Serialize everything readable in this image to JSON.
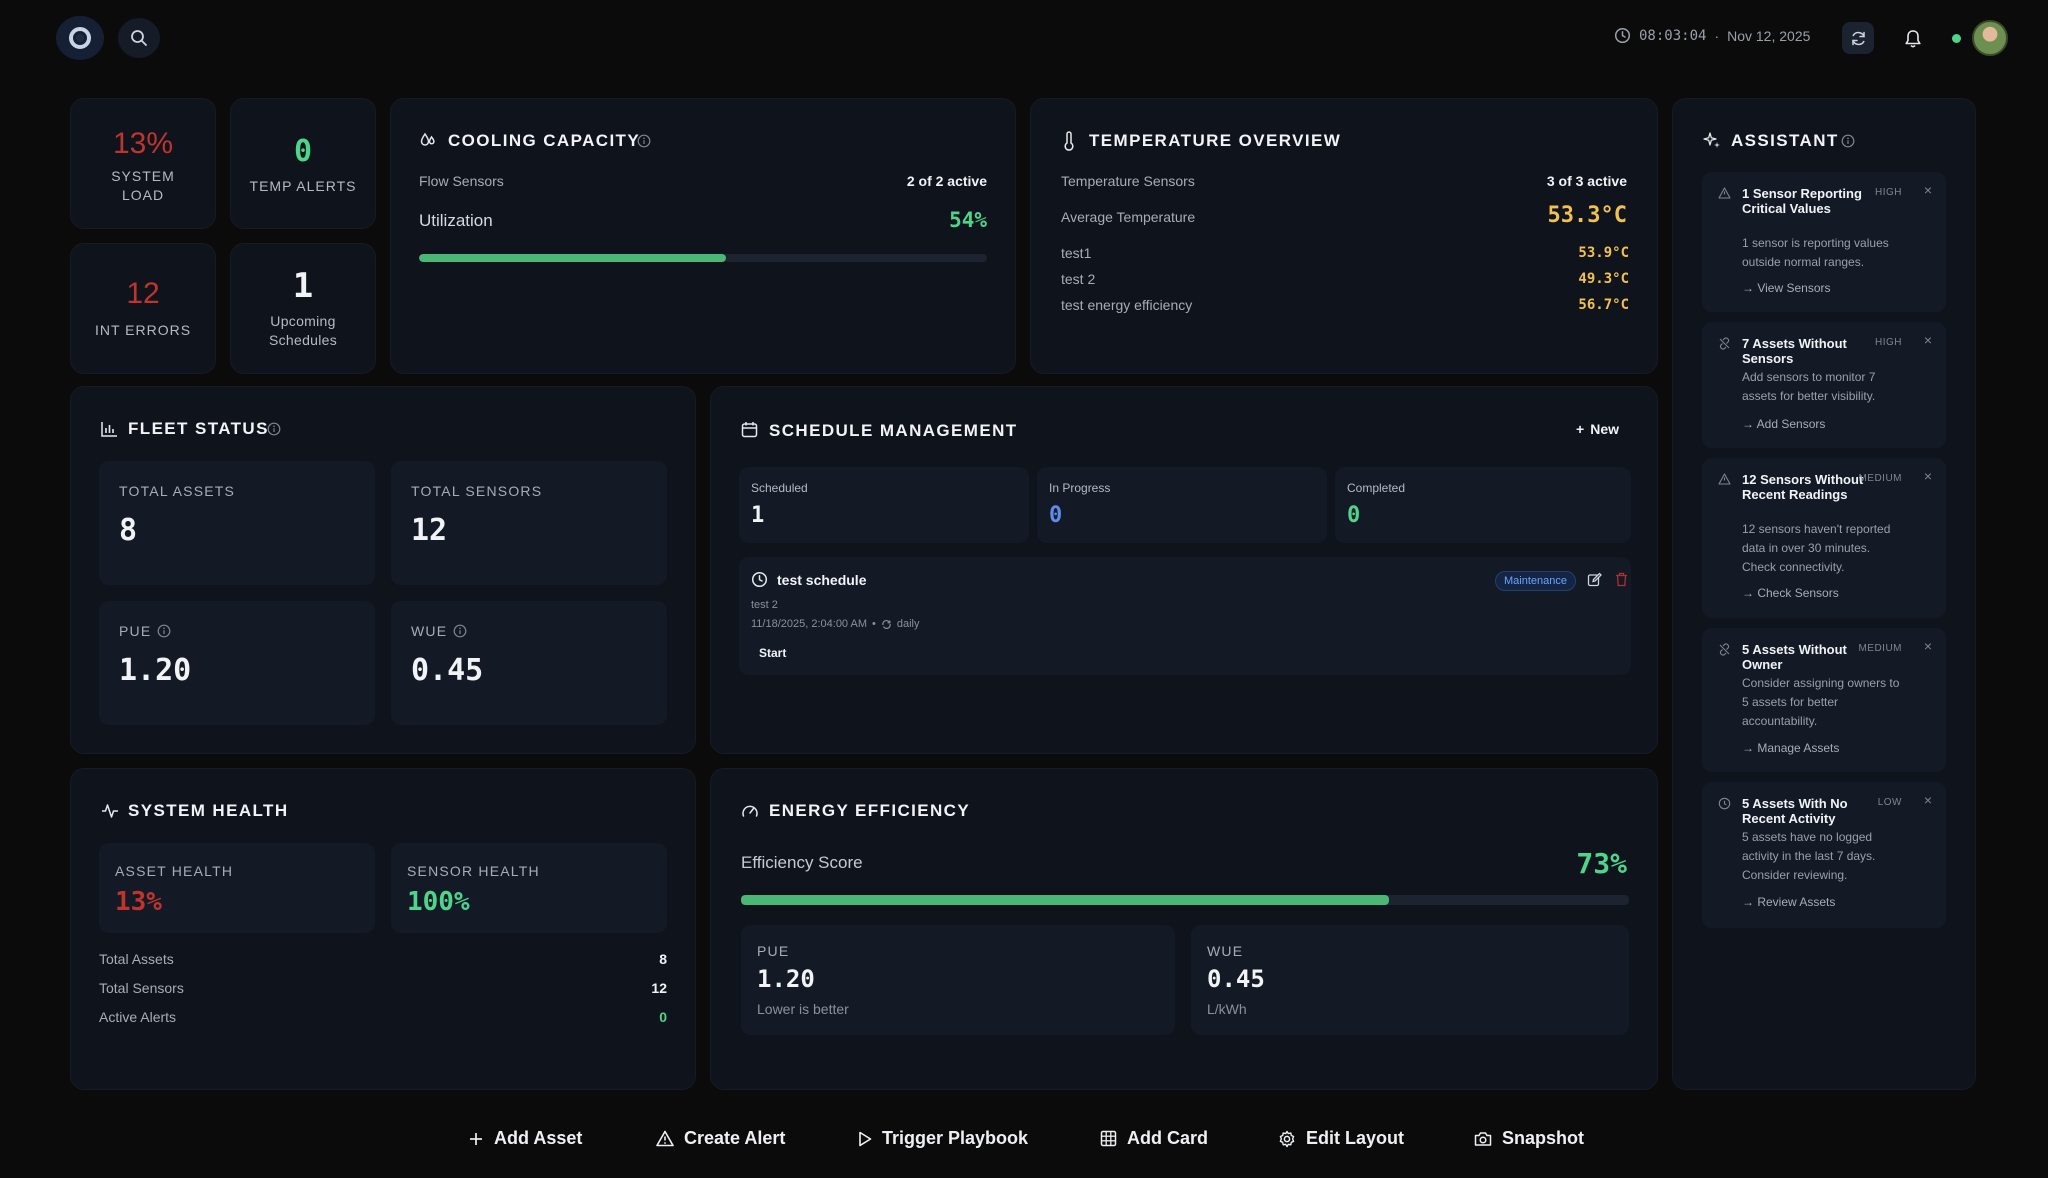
{
  "header": {
    "time": "08:03:04",
    "separator": "·",
    "date": "Nov 12, 2025"
  },
  "kpis": {
    "system_load": {
      "value": "13%",
      "label": "SYSTEM LOAD"
    },
    "temp_alerts": {
      "value": "0",
      "label": "TEMP ALERTS"
    },
    "int_errors": {
      "value": "12",
      "label": "INT ERRORS"
    },
    "upcoming": {
      "value": "1",
      "label": "Upcoming Schedules"
    }
  },
  "cooling": {
    "title": "COOLING CAPACITY",
    "flow_label": "Flow Sensors",
    "flow_value": "2 of 2 active",
    "util_label": "Utilization",
    "util_value": "54%",
    "util_fraction": 0.54
  },
  "temperature": {
    "title": "TEMPERATURE OVERVIEW",
    "sensors_label": "Temperature Sensors",
    "sensors_value": "3 of 3 active",
    "avg_label": "Average Temperature",
    "avg_value": "53.3°C",
    "items": [
      {
        "name": "test1",
        "value": "53.9°C"
      },
      {
        "name": "test 2",
        "value": "49.3°C"
      },
      {
        "name": "test energy efficiency",
        "value": "56.7°C"
      }
    ]
  },
  "fleet": {
    "title": "FLEET STATUS",
    "total_assets_label": "TOTAL ASSETS",
    "total_assets": "8",
    "total_sensors_label": "TOTAL SENSORS",
    "total_sensors": "12",
    "pue_label": "PUE",
    "pue": "1.20",
    "wue_label": "WUE",
    "wue": "0.45"
  },
  "schedule": {
    "title": "SCHEDULE MANAGEMENT",
    "new_label": "New",
    "scheduled_label": "Scheduled",
    "scheduled": "1",
    "progress_label": "In Progress",
    "progress": "0",
    "completed_label": "Completed",
    "completed": "0",
    "item": {
      "name": "test schedule",
      "desc": "test 2",
      "when": "11/18/2025, 2:04:00 AM",
      "dot": "•",
      "repeat": "daily",
      "tag": "Maintenance",
      "start_label": "Start"
    }
  },
  "health": {
    "title": "SYSTEM HEALTH",
    "asset_label": "ASSET HEALTH",
    "asset_value": "13%",
    "sensor_label": "SENSOR HEALTH",
    "sensor_value": "100%",
    "rows": [
      {
        "label": "Total Assets",
        "value": "8"
      },
      {
        "label": "Total Sensors",
        "value": "12"
      },
      {
        "label": "Active Alerts",
        "value": "0"
      }
    ]
  },
  "energy": {
    "title": "ENERGY EFFICIENCY",
    "score_label": "Efficiency Score",
    "score": "73%",
    "score_fraction": 0.73,
    "pue_label": "PUE",
    "pue": "1.20",
    "pue_note": "Lower is better",
    "wue_label": "WUE",
    "wue": "0.45",
    "wue_unit": "L/kWh"
  },
  "assistant": {
    "title": "ASSISTANT",
    "cards": [
      {
        "title": "1 Sensor Reporting Critical Values",
        "level": "HIGH",
        "desc": "1 sensor is reporting values outside normal ranges.",
        "action": "View Sensors",
        "icon": "warning-icon"
      },
      {
        "title": "7 Assets Without Sensors",
        "level": "HIGH",
        "desc": "Add sensors to monitor 7 assets for better visibility.",
        "action": "Add Sensors",
        "icon": "unlink-icon"
      },
      {
        "title": "12 Sensors Without Recent Readings",
        "level": "MEDIUM",
        "desc": "12 sensors haven't reported data in over 30 minutes. Check connectivity.",
        "action": "Check Sensors",
        "icon": "warning-icon"
      },
      {
        "title": "5 Assets Without Owner",
        "level": "MEDIUM",
        "desc": "Consider assigning owners to 5 assets for better accountability.",
        "action": "Manage Assets",
        "icon": "unlink-icon"
      },
      {
        "title": "5 Assets With No Recent Activity",
        "level": "LOW",
        "desc": "5 assets have no logged activity in the last 7 days. Consider reviewing.",
        "action": "Review Assets",
        "icon": "clock-icon"
      }
    ],
    "close": "×",
    "arrow": "→"
  },
  "toolbar": {
    "add_asset": "Add Asset",
    "create_alert": "Create Alert",
    "trigger_playbook": "Trigger Playbook",
    "add_card": "Add Card",
    "edit_layout": "Edit Layout",
    "snapshot": "Snapshot"
  },
  "colors": {
    "green": "#4ed48b",
    "red": "#c0342e",
    "yellow": "#f2c14e",
    "blue": "#5b8def",
    "bar": "#4bb776"
  }
}
